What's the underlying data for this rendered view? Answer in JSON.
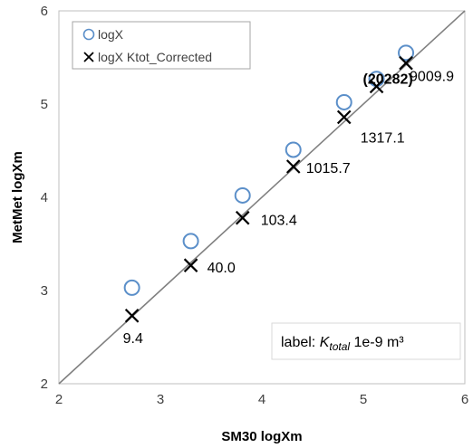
{
  "chart_data": {
    "type": "scatter",
    "xlabel": "SM30 logXm",
    "ylabel": "MetMet logXm",
    "xlim": [
      2,
      6
    ],
    "ylim": [
      2,
      6
    ],
    "xticks": [
      "2",
      "3",
      "4",
      "5",
      "6"
    ],
    "yticks": [
      "2",
      "3",
      "4",
      "5",
      "6"
    ],
    "grid": false,
    "legend_position": "top-left",
    "series": [
      {
        "name": "logX",
        "marker": "circle",
        "color": "#5b8fc9",
        "points": [
          {
            "x": 2.72,
            "y": 3.03
          },
          {
            "x": 3.3,
            "y": 3.53
          },
          {
            "x": 3.81,
            "y": 4.02
          },
          {
            "x": 4.31,
            "y": 4.51
          },
          {
            "x": 4.81,
            "y": 5.02
          },
          {
            "x": 5.13,
            "y": 5.27
          },
          {
            "x": 5.42,
            "y": 5.55
          }
        ]
      },
      {
        "name": "logX Ktot_Corrected",
        "marker": "x",
        "color": "#000000",
        "points": [
          {
            "x": 2.72,
            "y": 2.73,
            "label": "9.4"
          },
          {
            "x": 3.3,
            "y": 3.27,
            "label": "40.0"
          },
          {
            "x": 3.81,
            "y": 3.78,
            "label": "103.4"
          },
          {
            "x": 4.31,
            "y": 4.33,
            "label": "1015.7"
          },
          {
            "x": 4.81,
            "y": 4.86,
            "label": "1317.1"
          },
          {
            "x": 5.13,
            "y": 5.19,
            "label": "(20282)"
          },
          {
            "x": 5.42,
            "y": 5.44,
            "label": "9009.9"
          }
        ]
      }
    ],
    "reference_line": {
      "type": "y=x",
      "color": "#808080"
    },
    "annotation": {
      "prefix": "label: ",
      "symbol": "K",
      "subscript": "total",
      "suffix": " 1e-9 m³"
    }
  }
}
